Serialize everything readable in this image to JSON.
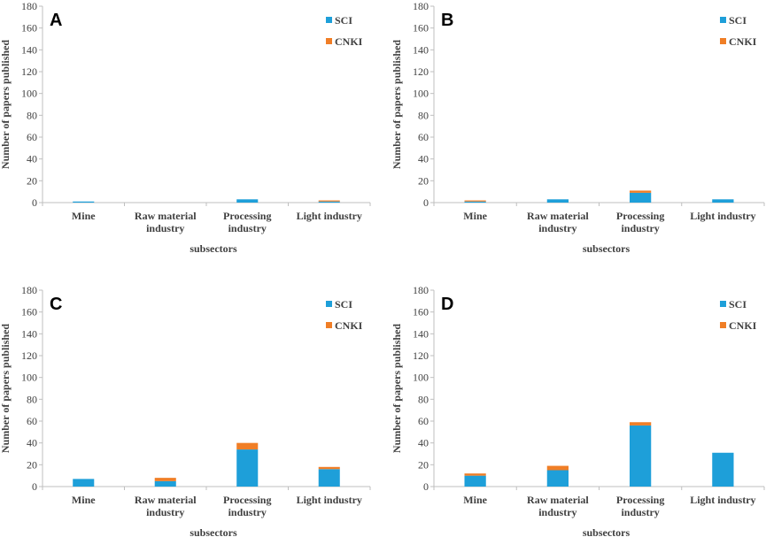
{
  "colors": {
    "sci": "#1E9FD9",
    "cnki": "#F07E26",
    "axis": "#BFBFBF",
    "text": "#404040"
  },
  "chart_data": [
    {
      "panel": "A",
      "type": "bar",
      "stacked": true,
      "categories": [
        "Mine",
        "Raw material industry",
        "Processing industry",
        "Light industry"
      ],
      "series": [
        {
          "name": "SCI",
          "values": [
            1,
            0,
            3,
            1
          ]
        },
        {
          "name": "CNKI",
          "values": [
            0,
            0,
            0,
            1
          ]
        }
      ],
      "xlabel": "subsectors",
      "ylabel": "Number of papers published",
      "ylim": [
        0,
        180
      ],
      "yticks": [
        0,
        20,
        40,
        60,
        80,
        100,
        120,
        140,
        160,
        180
      ],
      "legend": "top-right"
    },
    {
      "panel": "B",
      "type": "bar",
      "stacked": true,
      "categories": [
        "Mine",
        "Raw material industry",
        "Processing industry",
        "Light industry"
      ],
      "series": [
        {
          "name": "SCI",
          "values": [
            1,
            3,
            9,
            3
          ]
        },
        {
          "name": "CNKI",
          "values": [
            1,
            0,
            2,
            0
          ]
        }
      ],
      "xlabel": "subsectors",
      "ylabel": "Number of papers published",
      "ylim": [
        0,
        180
      ],
      "yticks": [
        0,
        20,
        40,
        60,
        80,
        100,
        120,
        140,
        160,
        180
      ],
      "legend": "top-right"
    },
    {
      "panel": "C",
      "type": "bar",
      "stacked": true,
      "categories": [
        "Mine",
        "Raw material industry",
        "Processing industry",
        "Light industry"
      ],
      "series": [
        {
          "name": "SCI",
          "values": [
            7,
            5,
            34,
            16
          ]
        },
        {
          "name": "CNKI",
          "values": [
            0,
            3,
            6,
            2
          ]
        }
      ],
      "xlabel": "subsectors",
      "ylabel": "Number of papers published",
      "ylim": [
        0,
        180
      ],
      "yticks": [
        0,
        20,
        40,
        60,
        80,
        100,
        120,
        140,
        160,
        180
      ],
      "legend": "top-right"
    },
    {
      "panel": "D",
      "type": "bar",
      "stacked": true,
      "categories": [
        "Mine",
        "Raw material industry",
        "Processing industry",
        "Light industry"
      ],
      "series": [
        {
          "name": "SCI",
          "values": [
            10,
            15,
            56,
            31
          ]
        },
        {
          "name": "CNKI",
          "values": [
            2,
            4,
            3,
            0
          ]
        }
      ],
      "xlabel": "subsectors",
      "ylabel": "Number of papers published",
      "ylim": [
        0,
        180
      ],
      "yticks": [
        0,
        20,
        40,
        60,
        80,
        100,
        120,
        140,
        160,
        180
      ],
      "legend": "top-right"
    }
  ]
}
